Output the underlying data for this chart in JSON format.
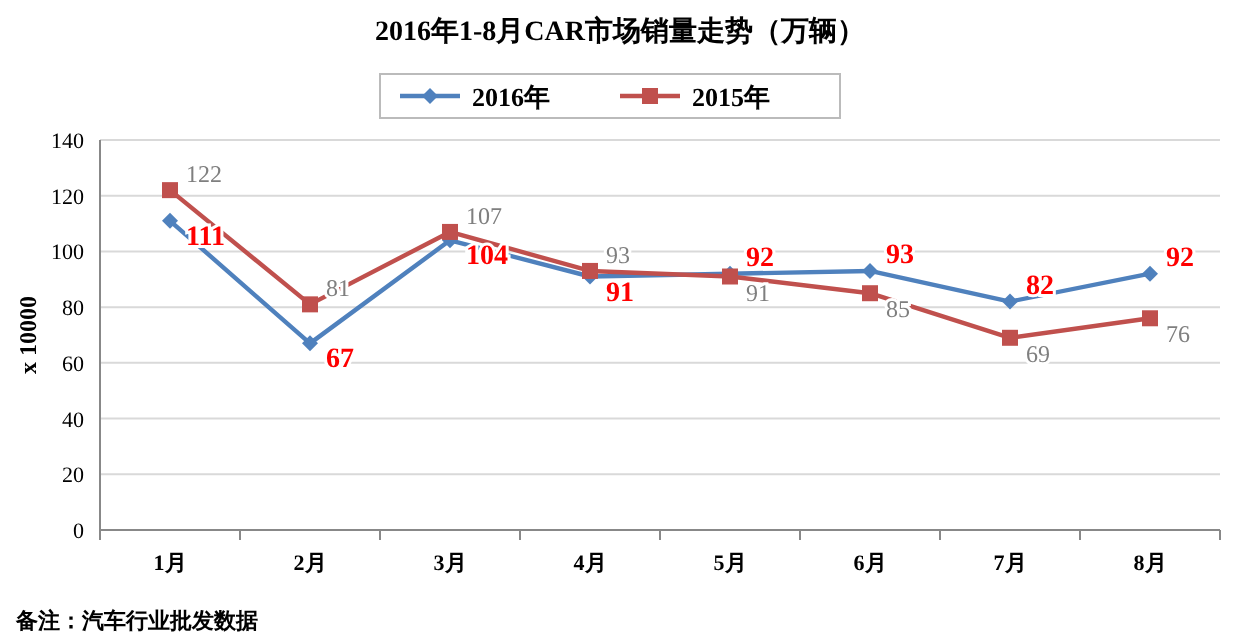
{
  "chart_data": {
    "type": "line",
    "title": "2016年1-8月CAR市场销量走势（万辆）",
    "ylabel": "x 10000",
    "categories": [
      "1月",
      "2月",
      "3月",
      "4月",
      "5月",
      "6月",
      "7月",
      "8月"
    ],
    "series": [
      {
        "name": "2016年",
        "color": "#4f81bd",
        "marker": "diamond",
        "values": [
          111,
          67,
          104,
          91,
          92,
          93,
          82,
          92
        ]
      },
      {
        "name": "2015年",
        "color": "#c0504d",
        "marker": "square",
        "values": [
          122,
          81,
          107,
          93,
          91,
          85,
          69,
          76
        ]
      }
    ],
    "ylim": [
      0,
      140
    ],
    "yticks": [
      0,
      20,
      40,
      60,
      80,
      100,
      120,
      140
    ],
    "grid": "y",
    "legend": "top",
    "data_labels": true,
    "annotations": [
      "备注：汽车行业批发数据"
    ]
  }
}
